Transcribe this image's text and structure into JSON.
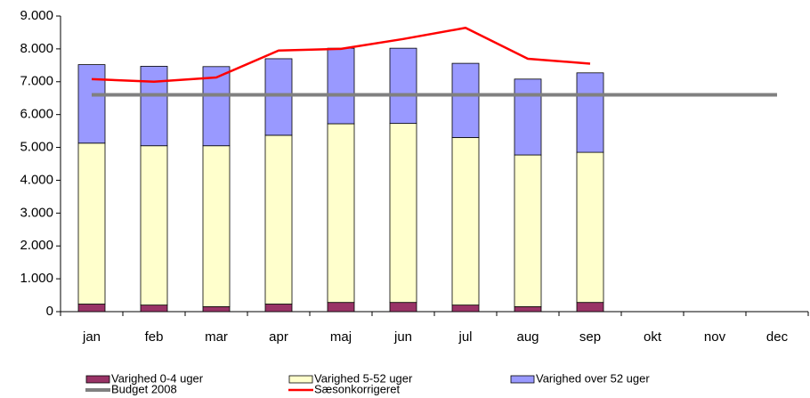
{
  "chart_data": {
    "type": "bar",
    "categories": [
      "jan",
      "feb",
      "mar",
      "apr",
      "maj",
      "jun",
      "jul",
      "aug",
      "sep",
      "okt",
      "nov",
      "dec"
    ],
    "stacked": true,
    "series": [
      {
        "name": "Varighed 0-4 uger",
        "color": "#993366",
        "type": "bar",
        "values": [
          230,
          200,
          150,
          230,
          280,
          280,
          200,
          150,
          280,
          null,
          null,
          null
        ]
      },
      {
        "name": "Varighed 5-52 uger",
        "color": "#ffffcc",
        "type": "bar",
        "values": [
          4900,
          4850,
          4900,
          5140,
          5440,
          5450,
          5100,
          4620,
          4570,
          null,
          null,
          null
        ]
      },
      {
        "name": "Varighed over 52 uger",
        "color": "#9999ff",
        "type": "bar",
        "values": [
          2390,
          2420,
          2410,
          2330,
          2300,
          2290,
          2260,
          2310,
          2420,
          null,
          null,
          null
        ]
      },
      {
        "name": "Budget 2008",
        "color": "#808080",
        "type": "line",
        "values": [
          6600,
          6600,
          6600,
          6600,
          6600,
          6600,
          6600,
          6600,
          6600,
          6600,
          6600,
          6600
        ]
      },
      {
        "name": "Sæsonkorrigeret",
        "color": "#ff0000",
        "type": "line",
        "values": [
          7080,
          7000,
          7130,
          7950,
          8000,
          8300,
          8640,
          7700,
          7550,
          null,
          null,
          null
        ]
      }
    ],
    "ylim": [
      0,
      9000
    ],
    "yticks": [
      0,
      {
        "value": 1000,
        "label": "1.000"
      },
      {
        "value": 2000,
        "label": "2.000"
      },
      {
        "value": 3000,
        "label": "3.000"
      },
      {
        "value": 4000,
        "label": "4.000"
      },
      {
        "value": 5000,
        "label": "5.000"
      },
      {
        "value": 6000,
        "label": "6.000"
      },
      {
        "value": 7000,
        "label": "7.000"
      },
      {
        "value": 8000,
        "label": "8.000"
      },
      {
        "value": 9000,
        "label": "9.000"
      }
    ],
    "grid": false
  }
}
